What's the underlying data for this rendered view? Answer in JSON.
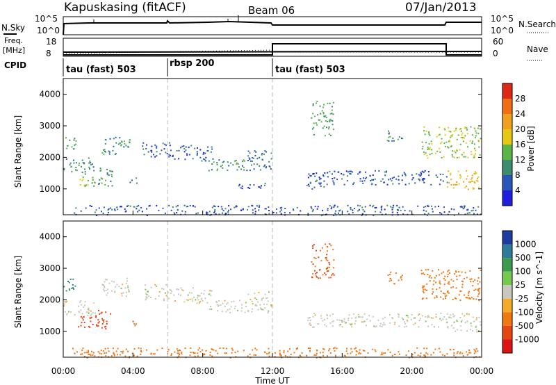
{
  "header": {
    "title": "Kapuskasing (fitACF)",
    "beam": "Beam 06",
    "date": "07/Jan/2013"
  },
  "top_panels": {
    "nsky": {
      "label": "N.Sky",
      "ticks": [
        "10^5",
        "10^0"
      ],
      "right_ticks": [
        "10^5",
        "10^0"
      ],
      "right_label": "N.Search"
    },
    "freq": {
      "label_line1": "Freq.",
      "label_line2": "[MHz]",
      "ticks": [
        "18",
        "8"
      ],
      "right_ticks": [
        "60",
        "0"
      ],
      "right_label": "Nave"
    },
    "cpid": {
      "label": "CPID",
      "segments": [
        {
          "label": "tau (fast) 503",
          "start_hour": 0,
          "end_hour": 6
        },
        {
          "label": "rbsp 200",
          "start_hour": 6,
          "end_hour": 12
        },
        {
          "label": "tau (fast) 503",
          "start_hour": 12,
          "end_hour": 24
        }
      ]
    }
  },
  "power_panel": {
    "ylabel": "Slant Range [km]",
    "yticks": [
      "1000",
      "2000",
      "3000",
      "4000"
    ],
    "colorbar_label": "Power [dB]",
    "colorbar_ticks": [
      "4",
      "8",
      "12",
      "16",
      "20",
      "24",
      "28"
    ],
    "colors": [
      "#1e1edc",
      "#2a56b8",
      "#3c8c6e",
      "#5ab446",
      "#e6c814",
      "#f0a01e",
      "#f06e14",
      "#dc2814"
    ]
  },
  "velocity_panel": {
    "ylabel": "Slant Range [km]",
    "yticks": [
      "1000",
      "2000",
      "3000",
      "4000"
    ],
    "colorbar_label": "Velocity [m s^-1]",
    "colorbar_ticks": [
      "1000",
      "500",
      "100",
      "25",
      "-25",
      "-100",
      "-500",
      "-1000"
    ],
    "colors": [
      "#1e3ca0",
      "#2f7a9a",
      "#3c9a50",
      "#78c850",
      "#c8c8be",
      "#f5aa28",
      "#f07814",
      "#e64614",
      "#dc1414"
    ]
  },
  "xaxis": {
    "label": "Time UT",
    "ticks": [
      "00:00",
      "04:00",
      "08:00",
      "12:00",
      "16:00",
      "20:00",
      "00:00"
    ]
  },
  "chart_data": {
    "type": "heatmap",
    "title": "Kapuskasing (fitACF)",
    "subtitle": "Beam 06 07/Jan/2013",
    "xlabel": "Time UT",
    "ylabel": "Slant Range [km]",
    "x_range_hours": [
      0,
      24
    ],
    "y_range_km": [
      180,
      4500
    ],
    "series": [
      {
        "name": "Power [dB]",
        "scatter_regions": [
          {
            "t": [
              0.0,
              0.7
            ],
            "r": [
              2200,
              2700
            ],
            "v": 12
          },
          {
            "t": [
              0.0,
              1.8
            ],
            "r": [
              1500,
              2000
            ],
            "v": 10
          },
          {
            "t": [
              0.8,
              2.0
            ],
            "r": [
              1100,
              1500
            ],
            "v": 14
          },
          {
            "t": [
              1.8,
              2.8
            ],
            "r": [
              1100,
              1700
            ],
            "v": 10
          },
          {
            "t": [
              2.2,
              3.8
            ],
            "r": [
              2100,
              2700
            ],
            "v": 10
          },
          {
            "t": [
              3.8,
              4.3
            ],
            "r": [
              1200,
              1400
            ],
            "v": 10
          },
          {
            "t": [
              4.5,
              6.2
            ],
            "r": [
              2000,
              2500
            ],
            "v": 6
          },
          {
            "t": [
              6.2,
              8.5
            ],
            "r": [
              1900,
              2400
            ],
            "v": 6
          },
          {
            "t": [
              8.3,
              10.5
            ],
            "r": [
              1600,
              2000
            ],
            "v": 10
          },
          {
            "t": [
              10.5,
              12.0
            ],
            "r": [
              1600,
              2300
            ],
            "v": 8
          },
          {
            "t": [
              10.0,
              12.0
            ],
            "r": [
              1000,
              1200
            ],
            "v": 6
          },
          {
            "t": [
              14.2,
              15.5
            ],
            "r": [
              2700,
              3800
            ],
            "v": 12
          },
          {
            "t": [
              13.8,
              15.0
            ],
            "r": [
              1000,
              1300
            ],
            "v": 8
          },
          {
            "t": [
              14.0,
              22.0
            ],
            "r": [
              1150,
              1600
            ],
            "v": 6
          },
          {
            "t": [
              18.5,
              19.5
            ],
            "r": [
              2500,
              2900
            ],
            "v": 10
          },
          {
            "t": [
              20.5,
              24.0
            ],
            "r": [
              2000,
              3000
            ],
            "v": 16
          },
          {
            "t": [
              22.0,
              24.0
            ],
            "r": [
              1000,
              1600
            ],
            "v": 20
          },
          {
            "t": [
              0.5,
              24.0
            ],
            "r": [
              180,
              500
            ],
            "v": 6
          }
        ]
      },
      {
        "name": "Velocity [m s^-1]",
        "scatter_regions": [
          {
            "t": [
              0.0,
              0.7
            ],
            "r": [
              2200,
              2700
            ],
            "v": 300
          },
          {
            "t": [
              0.0,
              1.8
            ],
            "r": [
              1500,
              2000
            ],
            "v": 0
          },
          {
            "t": [
              0.8,
              2.0
            ],
            "r": [
              1100,
              1500
            ],
            "v": -400
          },
          {
            "t": [
              1.8,
              2.8
            ],
            "r": [
              1100,
              1700
            ],
            "v": -400
          },
          {
            "t": [
              2.2,
              3.8
            ],
            "r": [
              2100,
              2700
            ],
            "v": 0
          },
          {
            "t": [
              3.8,
              4.3
            ],
            "r": [
              1200,
              1400
            ],
            "v": -300
          },
          {
            "t": [
              4.5,
              6.2
            ],
            "r": [
              2000,
              2500
            ],
            "v": 0
          },
          {
            "t": [
              6.2,
              8.5
            ],
            "r": [
              1900,
              2400
            ],
            "v": 0
          },
          {
            "t": [
              8.3,
              10.5
            ],
            "r": [
              1600,
              2000
            ],
            "v": 0
          },
          {
            "t": [
              10.5,
              12.0
            ],
            "r": [
              1600,
              2300
            ],
            "v": 0
          },
          {
            "t": [
              14.2,
              15.5
            ],
            "r": [
              2700,
              3800
            ],
            "v": -300
          },
          {
            "t": [
              14.0,
              22.0
            ],
            "r": [
              1150,
              1600
            ],
            "v": 0
          },
          {
            "t": [
              18.5,
              19.5
            ],
            "r": [
              2500,
              2900
            ],
            "v": -200
          },
          {
            "t": [
              20.5,
              24.0
            ],
            "r": [
              2000,
              3000
            ],
            "v": -200
          },
          {
            "t": [
              22.0,
              24.0
            ],
            "r": [
              1000,
              1600
            ],
            "v": 0
          },
          {
            "t": [
              0.5,
              24.0
            ],
            "r": [
              180,
              500
            ],
            "v": -200
          }
        ]
      }
    ]
  }
}
